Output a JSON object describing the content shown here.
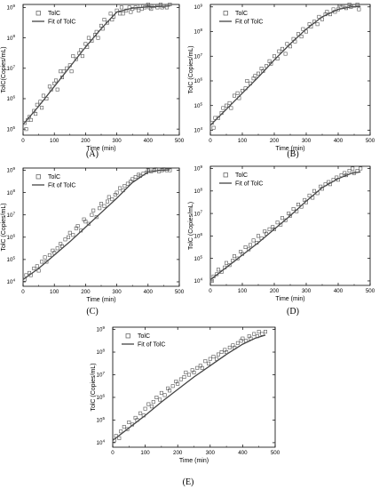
{
  "chart_data": [
    {
      "panel_label": "(A)",
      "type": "scatter",
      "xlabel": "Time (min)",
      "ylabel": "TolC(Copies/mL)",
      "xticks": [
        0,
        100,
        200,
        300,
        400,
        500
      ],
      "xlim": [
        0,
        500
      ],
      "ylog": true,
      "ylim_exp": [
        4.8,
        9.1
      ],
      "yticks_exp": [
        5,
        6,
        7,
        8,
        9
      ],
      "legend": {
        "marker": "TolC",
        "line": "Fit of TolC",
        "position": "top-left"
      },
      "scatter_x": [
        5,
        10,
        15,
        20,
        25,
        35,
        40,
        45,
        55,
        60,
        65,
        75,
        85,
        90,
        100,
        105,
        110,
        120,
        125,
        130,
        140,
        150,
        155,
        160,
        170,
        180,
        185,
        190,
        200,
        205,
        210,
        220,
        230,
        235,
        240,
        250,
        255,
        260,
        270,
        280,
        285,
        290,
        300,
        310,
        315,
        320,
        330,
        340,
        345,
        350,
        360,
        370,
        375,
        380,
        390,
        400,
        405,
        410,
        420,
        430,
        440,
        445,
        450,
        460,
        470
      ],
      "scatter_y_exp": [
        5.2,
        5.0,
        5.3,
        5.4,
        5.3,
        5.6,
        5.5,
        5.8,
        5.9,
        5.7,
        6.1,
        6.0,
        6.4,
        6.3,
        6.5,
        6.6,
        6.3,
        6.9,
        6.7,
        6.9,
        7.0,
        7.1,
        6.9,
        7.4,
        7.3,
        7.5,
        7.6,
        7.4,
        7.8,
        7.7,
        8.0,
        7.9,
        8.1,
        8.2,
        8.0,
        8.4,
        8.3,
        8.6,
        8.5,
        8.8,
        8.6,
        8.7,
        8.9,
        8.8,
        9.0,
        8.8,
        8.9,
        9.0,
        8.85,
        8.95,
        9.0,
        8.9,
        9.05,
        8.95,
        9.0,
        9.1,
        9.0,
        8.95,
        9.05,
        9.0,
        9.1,
        9.0,
        9.05,
        9.0,
        9.1
      ],
      "fit_x": [
        0,
        50,
        100,
        150,
        200,
        250,
        300,
        350,
        400,
        450,
        470
      ],
      "fit_y_exp": [
        5.15,
        5.75,
        6.4,
        7.05,
        7.7,
        8.3,
        8.85,
        8.98,
        9.02,
        9.04,
        9.05
      ]
    },
    {
      "panel_label": "(B)",
      "type": "scatter",
      "xlabel": "Time (min)",
      "ylabel": "TolC (Copies/mL)",
      "xticks": [
        0,
        100,
        200,
        300,
        400,
        500
      ],
      "xlim": [
        0,
        500
      ],
      "ylog": true,
      "ylim_exp": [
        3.8,
        9.1
      ],
      "yticks_exp": [
        4,
        5,
        6,
        7,
        8,
        9
      ],
      "legend": {
        "marker": "TolC",
        "line": "Fit of TolC",
        "position": "top-left"
      },
      "scatter_x": [
        5,
        10,
        15,
        25,
        35,
        40,
        50,
        60,
        65,
        75,
        85,
        90,
        100,
        110,
        115,
        125,
        135,
        140,
        150,
        160,
        165,
        175,
        185,
        190,
        200,
        210,
        215,
        225,
        235,
        240,
        250,
        260,
        265,
        275,
        285,
        290,
        300,
        310,
        315,
        325,
        335,
        340,
        350,
        360,
        365,
        375,
        385,
        390,
        400,
        410,
        415,
        425,
        435,
        440,
        450,
        460,
        465
      ],
      "scatter_y_exp": [
        4.3,
        4.1,
        4.5,
        4.5,
        4.7,
        4.9,
        5.0,
        5.1,
        4.9,
        5.4,
        5.5,
        5.3,
        5.6,
        5.7,
        6.0,
        5.9,
        6.1,
        6.2,
        6.3,
        6.5,
        6.4,
        6.6,
        6.8,
        6.7,
        7.0,
        6.9,
        7.2,
        7.3,
        7.1,
        7.5,
        7.4,
        7.7,
        7.6,
        7.9,
        7.8,
        8.1,
        8.0,
        8.3,
        8.2,
        8.4,
        8.3,
        8.6,
        8.5,
        8.7,
        8.8,
        8.7,
        8.9,
        8.8,
        8.9,
        9.0,
        9.05,
        8.95,
        9.1,
        9.0,
        9.05,
        9.1,
        8.9
      ],
      "fit_x": [
        0,
        50,
        100,
        150,
        200,
        250,
        300,
        350,
        400,
        440,
        470
      ],
      "fit_y_exp": [
        4.2,
        4.85,
        5.5,
        6.15,
        6.85,
        7.5,
        8.1,
        8.6,
        8.9,
        9.0,
        9.02
      ]
    },
    {
      "panel_label": "(C)",
      "type": "scatter",
      "xlabel": "Time (min)",
      "ylabel": "TolC (Copies/mL)",
      "xticks": [
        0,
        100,
        200,
        300,
        400,
        500
      ],
      "xlim": [
        0,
        500
      ],
      "ylog": true,
      "ylim_exp": [
        3.8,
        9.1
      ],
      "yticks_exp": [
        4,
        5,
        6,
        7,
        8,
        9
      ],
      "legend": {
        "marker": "TolC",
        "line": "Fit of TolC",
        "position": "top-left"
      },
      "scatter_x": [
        5,
        10,
        20,
        25,
        35,
        45,
        50,
        60,
        70,
        75,
        85,
        95,
        100,
        110,
        120,
        125,
        135,
        145,
        150,
        160,
        170,
        175,
        185,
        195,
        200,
        210,
        220,
        225,
        235,
        245,
        250,
        260,
        270,
        275,
        285,
        295,
        300,
        310,
        320,
        325,
        335,
        345,
        350,
        360,
        370,
        375,
        385,
        395,
        400,
        410,
        420,
        425,
        435,
        445,
        450,
        460,
        470
      ],
      "scatter_y_exp": [
        4.1,
        4.3,
        4.4,
        4.3,
        4.6,
        4.7,
        4.5,
        4.9,
        5.1,
        4.9,
        5.2,
        5.4,
        5.3,
        5.5,
        5.7,
        5.6,
        5.9,
        6.0,
        6.2,
        6.1,
        6.4,
        6.5,
        6.3,
        6.8,
        6.7,
        6.6,
        7.0,
        7.2,
        6.9,
        7.3,
        7.5,
        7.4,
        7.6,
        7.8,
        7.7,
        7.9,
        8.0,
        8.2,
        8.1,
        8.3,
        8.4,
        8.5,
        8.6,
        8.7,
        8.8,
        8.75,
        8.85,
        8.9,
        9.0,
        8.95,
        9.0,
        9.05,
        8.95,
        9.0,
        9.05,
        9.0,
        9.0
      ],
      "fit_x": [
        0,
        50,
        100,
        150,
        200,
        250,
        300,
        350,
        400,
        440,
        470
      ],
      "fit_y_exp": [
        4.1,
        4.6,
        5.2,
        5.8,
        6.45,
        7.1,
        7.75,
        8.45,
        8.92,
        9.0,
        9.02
      ]
    },
    {
      "panel_label": "(D)",
      "type": "scatter",
      "xlabel": "Time (min)",
      "ylabel": "TolC (Copies/mL)",
      "xticks": [
        0,
        100,
        200,
        300,
        400,
        500
      ],
      "xlim": [
        0,
        500
      ],
      "ylog": true,
      "ylim_exp": [
        3.8,
        9.1
      ],
      "yticks_exp": [
        4,
        5,
        6,
        7,
        8,
        9
      ],
      "legend": {
        "marker": "TolC",
        "line": "Fit of TolC",
        "position": "top-left"
      },
      "scatter_x": [
        5,
        10,
        20,
        25,
        35,
        45,
        50,
        60,
        70,
        75,
        85,
        95,
        100,
        110,
        120,
        125,
        135,
        145,
        150,
        160,
        170,
        175,
        185,
        195,
        200,
        210,
        220,
        225,
        235,
        245,
        250,
        260,
        270,
        275,
        285,
        295,
        300,
        310,
        320,
        325,
        335,
        345,
        350,
        360,
        370,
        375,
        385,
        395,
        400,
        410,
        420,
        425,
        435,
        445,
        450,
        460,
        470
      ],
      "scatter_y_exp": [
        4.0,
        4.2,
        4.3,
        4.5,
        4.4,
        4.6,
        4.8,
        4.7,
        4.9,
        5.1,
        5.0,
        5.3,
        5.2,
        5.5,
        5.4,
        5.6,
        5.8,
        5.7,
        6.0,
        5.9,
        6.2,
        6.1,
        6.3,
        6.4,
        6.3,
        6.6,
        6.5,
        6.8,
        6.7,
        7.0,
        6.9,
        7.2,
        7.1,
        7.4,
        7.3,
        7.6,
        7.5,
        7.8,
        7.7,
        8.0,
        7.9,
        8.2,
        8.1,
        8.3,
        8.4,
        8.3,
        8.5,
        8.6,
        8.5,
        8.7,
        8.8,
        8.7,
        8.9,
        9.0,
        8.8,
        8.9,
        9.0
      ],
      "fit_x": [
        0,
        50,
        100,
        150,
        200,
        250,
        300,
        350,
        400,
        440,
        470
      ],
      "fit_y_exp": [
        4.05,
        4.6,
        5.15,
        5.7,
        6.3,
        6.9,
        7.55,
        8.15,
        8.55,
        8.78,
        8.85
      ]
    },
    {
      "panel_label": "(E)",
      "type": "scatter",
      "xlabel": "Time (min)",
      "ylabel": "TolC (Copies/mL)",
      "xticks": [
        0,
        100,
        200,
        300,
        400,
        500
      ],
      "xlim": [
        0,
        500
      ],
      "ylog": true,
      "ylim_exp": [
        3.8,
        9.1
      ],
      "yticks_exp": [
        4,
        5,
        6,
        7,
        8,
        9
      ],
      "legend": {
        "marker": "TolC",
        "line": "Fit of TolC",
        "position": "top-left"
      },
      "scatter_x": [
        5,
        10,
        20,
        25,
        35,
        45,
        50,
        60,
        70,
        75,
        85,
        95,
        100,
        110,
        120,
        125,
        135,
        145,
        150,
        160,
        170,
        175,
        185,
        195,
        200,
        210,
        220,
        225,
        235,
        245,
        250,
        260,
        270,
        275,
        285,
        295,
        300,
        310,
        320,
        325,
        335,
        345,
        350,
        360,
        370,
        375,
        385,
        395,
        400,
        410,
        420,
        425,
        435,
        445,
        450,
        460,
        470
      ],
      "scatter_y_exp": [
        4.1,
        4.3,
        4.2,
        4.5,
        4.7,
        4.6,
        4.9,
        4.8,
        5.1,
        5.0,
        5.3,
        5.2,
        5.5,
        5.7,
        5.6,
        5.8,
        6.0,
        5.9,
        6.2,
        6.1,
        6.4,
        6.3,
        6.5,
        6.7,
        6.6,
        6.8,
        6.9,
        7.1,
        7.0,
        7.2,
        7.1,
        7.3,
        7.4,
        7.3,
        7.6,
        7.5,
        7.7,
        7.8,
        7.7,
        7.9,
        8.0,
        8.1,
        8.0,
        8.2,
        8.3,
        8.2,
        8.4,
        8.5,
        8.6,
        8.5,
        8.7,
        8.6,
        8.8,
        8.7,
        8.9,
        8.8,
        8.9
      ],
      "fit_x": [
        0,
        50,
        100,
        150,
        200,
        250,
        300,
        350,
        400,
        440,
        470
      ],
      "fit_y_exp": [
        4.1,
        4.65,
        5.2,
        5.8,
        6.35,
        6.9,
        7.4,
        7.9,
        8.35,
        8.62,
        8.75
      ]
    }
  ]
}
